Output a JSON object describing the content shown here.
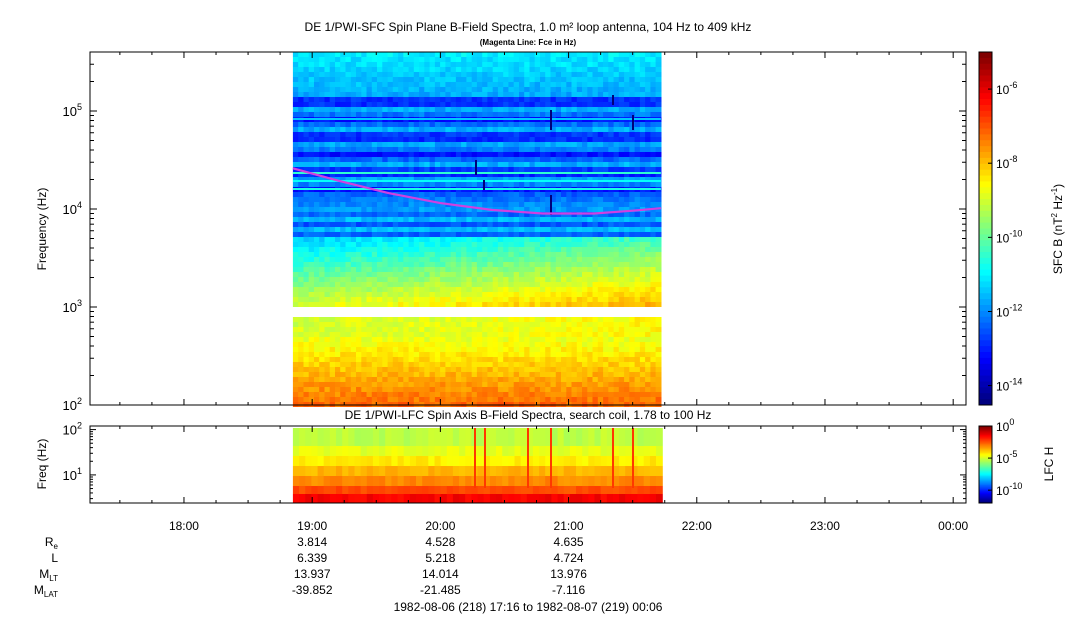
{
  "chart_data": [
    {
      "type": "heatmap",
      "title": "DE 1/PWI-SFC  Spin Plane B-Field Spectra, 1.0 m² loop antenna, 104 Hz to 409 kHz",
      "subtitle": "(Magenta Line: Fce in Hz)",
      "ylabel": "Frequency (Hz)",
      "yscale": "log",
      "ylim": [
        100,
        400000
      ],
      "y_ticks": [
        {
          "value": 100,
          "base": "10",
          "exp": "2"
        },
        {
          "value": 1000,
          "base": "10",
          "exp": "3"
        },
        {
          "value": 10000,
          "base": "10",
          "exp": "4"
        },
        {
          "value": 100000,
          "base": "10",
          "exp": "5"
        }
      ],
      "data_start_hour": 18.85,
      "data_end_hour": 21.72,
      "fce_line": {
        "name": "Fce",
        "color": "#d040e0",
        "points": [
          [
            18.85,
            26000
          ],
          [
            19.2,
            19500
          ],
          [
            19.6,
            14500
          ],
          [
            20.0,
            11500
          ],
          [
            20.4,
            9800
          ],
          [
            20.8,
            9000
          ],
          [
            21.2,
            9000
          ],
          [
            21.5,
            9600
          ],
          [
            21.72,
            10200
          ]
        ]
      },
      "colorbar": {
        "label_main": "SFC B (nT",
        "label_sup1": "2",
        "label_mid": " Hz",
        "label_sup2": "-1",
        "label_end": ")",
        "scale": "log",
        "range": [
          3e-15,
          1e-05
        ],
        "ticks": [
          {
            "value": 1e-06,
            "base": "10",
            "exp": "-6"
          },
          {
            "value": 1e-08,
            "base": "10",
            "exp": "-8"
          },
          {
            "value": 1e-10,
            "base": "10",
            "exp": "-10"
          },
          {
            "value": 1e-12,
            "base": "10",
            "exp": "-12"
          },
          {
            "value": 1e-14,
            "base": "10",
            "exp": "-14"
          }
        ]
      }
    },
    {
      "type": "heatmap",
      "title": "DE 1/PWI-LFC  Spin Axis B-Field Spectra, search coil, 1.78 to 100 Hz",
      "ylabel": "Freq (Hz)",
      "yscale": "log",
      "ylim": [
        2.4,
        120
      ],
      "y_ticks": [
        {
          "value": 10,
          "base": "10",
          "exp": "1"
        },
        {
          "value": 100,
          "base": "10",
          "exp": "2"
        }
      ],
      "data_start_hour": 18.85,
      "data_end_hour": 21.73,
      "colorbar": {
        "label": "LFC H",
        "scale": "log",
        "range": [
          1e-12,
          1
        ],
        "ticks": [
          {
            "value": 1,
            "base": "10",
            "exp": "0"
          },
          {
            "value": 1e-05,
            "base": "10",
            "exp": "-5"
          },
          {
            "value": 1e-10,
            "base": "10",
            "exp": "-10"
          }
        ]
      }
    }
  ],
  "x_axis": {
    "range_hours": [
      17.267,
      24.1
    ],
    "ticks": [
      {
        "hour": 18,
        "label": "18:00"
      },
      {
        "hour": 19,
        "label": "19:00"
      },
      {
        "hour": 20,
        "label": "20:00"
      },
      {
        "hour": 21,
        "label": "21:00"
      },
      {
        "hour": 22,
        "label": "22:00"
      },
      {
        "hour": 23,
        "label": "23:00"
      },
      {
        "hour": 24,
        "label": "00:00"
      }
    ],
    "time_range_label": "1982-08-06 (218) 17:16 to 1982-08-07 (219) 00:06"
  },
  "ephemeris": {
    "rows": [
      {
        "label": "R",
        "sub": "e",
        "values": [
          "3.814",
          "4.528",
          "4.635"
        ]
      },
      {
        "label": "L",
        "sub": "",
        "values": [
          "6.339",
          "5.218",
          "4.724"
        ]
      },
      {
        "label": "M",
        "sub": "LT",
        "values": [
          "13.937",
          "14.014",
          "13.976"
        ]
      },
      {
        "label": "M",
        "sub": "LAT",
        "values": [
          "-39.852",
          "-21.485",
          "-7.116"
        ]
      }
    ],
    "column_hours": [
      19,
      20,
      21
    ]
  }
}
